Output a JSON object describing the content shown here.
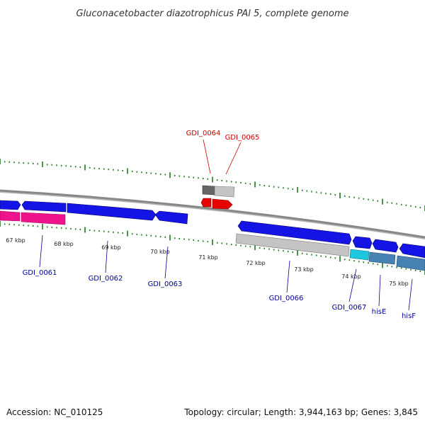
{
  "title": "Gluconacetobacter diazotrophicus PAl 5, complete genome",
  "footer": {
    "accession": "Accession: NC_010125",
    "summary": "Topology: circular; Length: 3,944,163 bp; Genes: 3,845"
  },
  "colors": {
    "tick": "#1a7a1a",
    "backbone": "#888888",
    "gene_blue": "#1414e6",
    "gene_pink": "#f0148c",
    "gene_gray": "#bdbdbd",
    "gene_dark_gray": "#666666",
    "gene_red": "#e60000",
    "gene_cyan": "#1cc8e0",
    "gene_steel": "#4682b4",
    "label_blue": "#00009c",
    "label_red": "#cc0000"
  },
  "kbp_labels": [
    "67 kbp",
    "68 kbp",
    "69 kbp",
    "70 kbp",
    "71 kbp",
    "72 kbp",
    "73 kbp",
    "74 kbp",
    "75 kbp"
  ],
  "gene_labels": [
    {
      "text": "GDI_0061",
      "color": "blue"
    },
    {
      "text": "GDI_0062",
      "color": "blue"
    },
    {
      "text": "GDI_0063",
      "color": "blue"
    },
    {
      "text": "GDI_0064",
      "color": "red"
    },
    {
      "text": "GDI_0065",
      "color": "red"
    },
    {
      "text": "GDI_0066",
      "color": "blue"
    },
    {
      "text": "GDI_0067",
      "color": "blue"
    },
    {
      "text": "hisE",
      "color": "blue"
    },
    {
      "text": "hisF",
      "color": "blue"
    }
  ]
}
